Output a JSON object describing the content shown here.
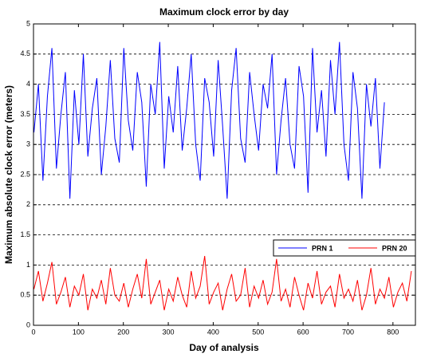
{
  "chart_data": {
    "type": "line",
    "title": "Maximum clock error by day",
    "x_label": "Day of analysis",
    "y_label": "Maximum absolute clock error (meters)",
    "xlim": [
      0,
      850
    ],
    "xticks": [
      0,
      100,
      200,
      300,
      400,
      500,
      600,
      700,
      800
    ],
    "ylim": [
      0,
      5
    ],
    "yticks": [
      0,
      0.5,
      1,
      1.5,
      2,
      2.5,
      3,
      3.5,
      4,
      4.5,
      5
    ],
    "grid": "y",
    "legend": "right",
    "series": [
      {
        "name": "PRN 1",
        "color": "#0000ff",
        "x": [
          1,
          11,
          21,
          31,
          41,
          51,
          61,
          71,
          81,
          91,
          101,
          111,
          121,
          131,
          141,
          151,
          161,
          171,
          181,
          191,
          201,
          211,
          221,
          231,
          241,
          251,
          261,
          271,
          281,
          291,
          301,
          311,
          321,
          331,
          341,
          351,
          361,
          371,
          381,
          391,
          401,
          411,
          421,
          431,
          441,
          451,
          461,
          471,
          481,
          491,
          501,
          511,
          521,
          531,
          541,
          551,
          561,
          571,
          581,
          591,
          601,
          611,
          621,
          631,
          641,
          651,
          661,
          671,
          681,
          691,
          701,
          711,
          721,
          731,
          741,
          751,
          761,
          771,
          781
        ],
        "values": [
          3.2,
          4.0,
          2.4,
          3.8,
          4.6,
          2.6,
          3.5,
          4.2,
          2.1,
          3.9,
          3.0,
          4.5,
          2.8,
          3.6,
          4.1,
          2.5,
          3.3,
          4.4,
          3.1,
          2.7,
          4.6,
          3.4,
          2.9,
          4.2,
          3.7,
          2.3,
          4.0,
          3.5,
          4.7,
          2.6,
          3.8,
          3.2,
          4.3,
          2.9,
          3.6,
          4.5,
          3.0,
          2.4,
          4.1,
          3.7,
          2.8,
          4.4,
          3.3,
          2.1,
          3.9,
          4.6,
          3.1,
          2.7,
          4.2,
          3.5,
          2.9,
          4.0,
          3.6,
          4.5,
          2.5,
          3.4,
          4.1,
          3.0,
          2.6,
          4.3,
          3.8,
          2.2,
          4.6,
          3.2,
          3.9,
          2.8,
          4.4,
          3.5,
          4.7,
          3.0,
          2.4,
          4.2,
          3.6,
          2.1,
          4.0,
          3.3,
          4.1,
          2.6,
          3.7
        ]
      },
      {
        "name": "PRN 20",
        "color": "#ff0000",
        "x": [
          1,
          11,
          21,
          31,
          41,
          51,
          61,
          71,
          81,
          91,
          101,
          111,
          121,
          131,
          141,
          151,
          161,
          171,
          181,
          191,
          201,
          211,
          221,
          231,
          241,
          251,
          261,
          271,
          281,
          291,
          301,
          311,
          321,
          331,
          341,
          351,
          361,
          371,
          381,
          391,
          401,
          411,
          421,
          431,
          441,
          451,
          461,
          471,
          481,
          491,
          501,
          511,
          521,
          531,
          541,
          551,
          561,
          571,
          581,
          591,
          601,
          611,
          621,
          631,
          641,
          651,
          661,
          671,
          681,
          691,
          701,
          711,
          721,
          731,
          741,
          751,
          761,
          771,
          781,
          791,
          801,
          811,
          821,
          831,
          841
        ],
        "values": [
          0.6,
          0.9,
          0.4,
          0.7,
          1.05,
          0.35,
          0.55,
          0.8,
          0.3,
          0.65,
          0.5,
          0.85,
          0.25,
          0.6,
          0.45,
          0.75,
          0.35,
          0.95,
          0.5,
          0.4,
          0.7,
          0.3,
          0.6,
          0.85,
          0.45,
          1.1,
          0.35,
          0.55,
          0.75,
          0.25,
          0.6,
          0.4,
          0.8,
          0.5,
          0.3,
          0.9,
          0.45,
          0.65,
          1.15,
          0.35,
          0.55,
          0.7,
          0.25,
          0.6,
          0.85,
          0.4,
          0.5,
          0.95,
          0.3,
          0.65,
          0.45,
          0.75,
          0.35,
          0.55,
          1.1,
          0.4,
          0.6,
          0.3,
          0.8,
          0.5,
          0.25,
          0.7,
          0.45,
          0.9,
          0.35,
          0.55,
          0.65,
          0.3,
          0.85,
          0.45,
          0.6,
          0.4,
          0.75,
          0.25,
          0.5,
          0.95,
          0.35,
          0.6,
          0.45,
          0.8,
          0.3,
          0.55,
          0.7,
          0.4,
          0.9
        ]
      }
    ]
  }
}
